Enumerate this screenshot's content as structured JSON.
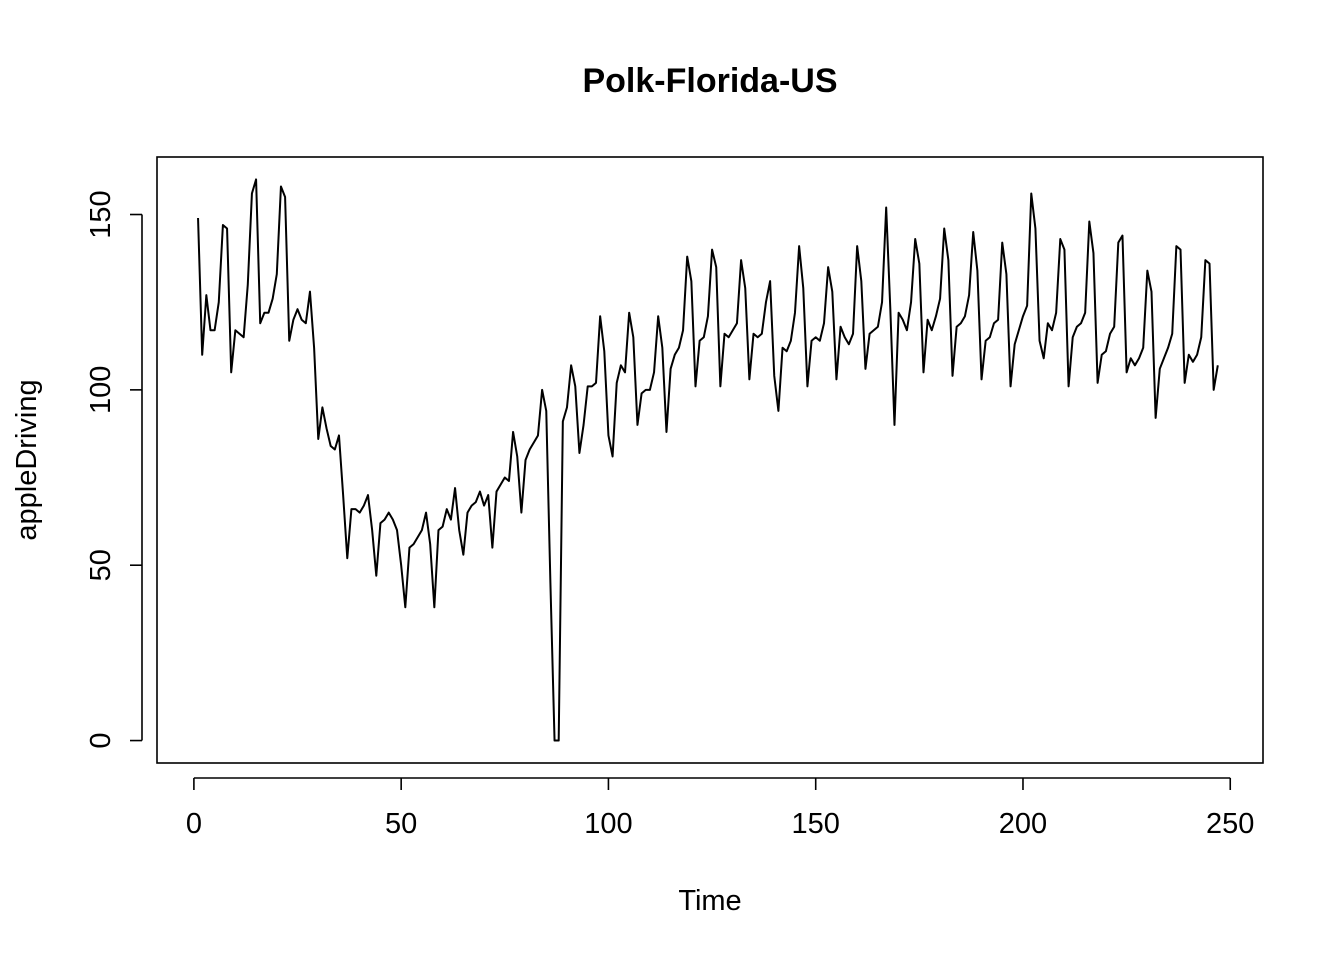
{
  "chart_data": {
    "type": "line",
    "title": "Polk-Florida-US",
    "xlabel": "Time",
    "ylabel": "appleDriving",
    "xlim": [
      -8.9,
      257.9
    ],
    "ylim": [
      -6.4,
      166.4
    ],
    "xticks": [
      0,
      50,
      100,
      150,
      200,
      250
    ],
    "yticks": [
      0,
      50,
      100,
      150
    ],
    "grid": false,
    "legend": "none",
    "series": [
      {
        "x_start": 1,
        "values": [
          149,
          110,
          127,
          117,
          117,
          125,
          147,
          146,
          105,
          117,
          116,
          115,
          130,
          156,
          160,
          119,
          122,
          122,
          126,
          133,
          158,
          155,
          114,
          120,
          123,
          120,
          119,
          128,
          112,
          86,
          95,
          89,
          84,
          83,
          87,
          70,
          52,
          66,
          66,
          65,
          67,
          70,
          60,
          47,
          62,
          63,
          65,
          63,
          60,
          50,
          38,
          55,
          56,
          58,
          60,
          65,
          56,
          38,
          60,
          61,
          66,
          63,
          72,
          60,
          53,
          65,
          67,
          68,
          71,
          67,
          70,
          55,
          71,
          73,
          75,
          74,
          88,
          81,
          65,
          80,
          83,
          85,
          87,
          100,
          94,
          45,
          0,
          0,
          91,
          95,
          107,
          101,
          82,
          90,
          101,
          101,
          102,
          121,
          111,
          87,
          81,
          102,
          107,
          105,
          122,
          115,
          90,
          99,
          100,
          100,
          105,
          121,
          112,
          88,
          106,
          110,
          112,
          117,
          138,
          131,
          101,
          114,
          115,
          121,
          140,
          135,
          101,
          116,
          115,
          117,
          119,
          137,
          129,
          103,
          116,
          115,
          116,
          125,
          131,
          104,
          94,
          112,
          111,
          114,
          122,
          141,
          129,
          101,
          114,
          115,
          114,
          119,
          135,
          128,
          103,
          118,
          115,
          113,
          116,
          141,
          131,
          106,
          116,
          117,
          118,
          125,
          152,
          123,
          90,
          122,
          120,
          117,
          125,
          143,
          136,
          105,
          120,
          117,
          121,
          126,
          146,
          137,
          104,
          118,
          119,
          121,
          127,
          145,
          134,
          103,
          114,
          115,
          119,
          120,
          142,
          133,
          101,
          113,
          117,
          121,
          124,
          156,
          146,
          114,
          109,
          119,
          117,
          122,
          143,
          140,
          101,
          115,
          118,
          119,
          122,
          148,
          139,
          102,
          110,
          111,
          116,
          118,
          142,
          144,
          105,
          109,
          107,
          109,
          112,
          134,
          128,
          92,
          106,
          109,
          112,
          116,
          141,
          140,
          102,
          110,
          108,
          110,
          115,
          137,
          136,
          100,
          107
        ]
      }
    ]
  }
}
